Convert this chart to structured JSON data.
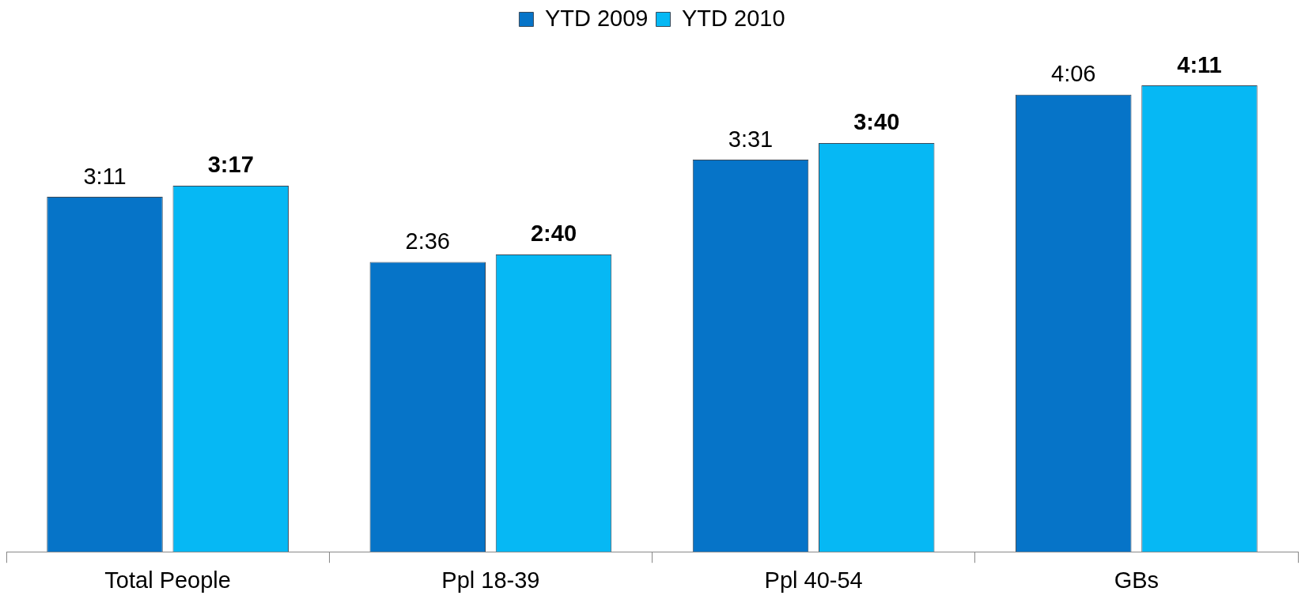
{
  "chart_data": {
    "type": "bar",
    "categories": [
      "Total People",
      "Ppl 18-39",
      "Ppl 40-54",
      "GBs"
    ],
    "series": [
      {
        "name": "YTD 2009",
        "color": "#0674c8",
        "values": [
          191,
          156,
          211,
          246
        ],
        "value_labels": [
          "3:11",
          "2:36",
          "3:31",
          "4:06"
        ]
      },
      {
        "name": "YTD 2010",
        "color": "#06b8f4",
        "values": [
          197,
          160,
          220,
          251
        ],
        "value_labels": [
          "3:17",
          "2:40",
          "3:40",
          "4:11"
        ]
      }
    ],
    "legend": "top",
    "grid": false,
    "tick_labels": "x"
  }
}
